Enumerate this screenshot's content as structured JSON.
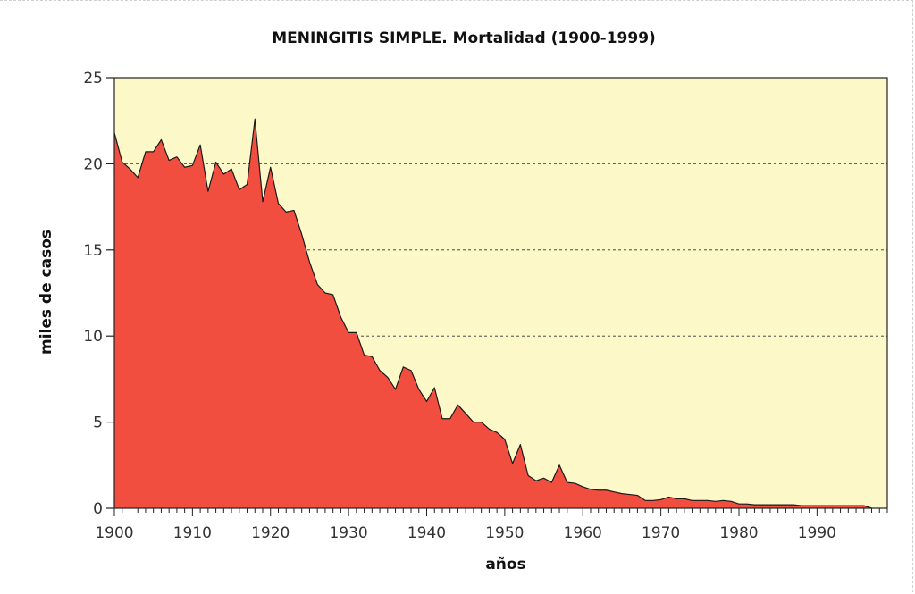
{
  "chart_data": {
    "type": "area",
    "title": "MENINGITIS SIMPLE. Mortalidad (1900-1999)",
    "xlabel": "años",
    "ylabel": "miles de casos",
    "xlim": [
      1900,
      1999
    ],
    "ylim": [
      0,
      25
    ],
    "x_ticks": [
      1900,
      1910,
      1920,
      1930,
      1940,
      1950,
      1960,
      1970,
      1980,
      1990
    ],
    "y_ticks": [
      0,
      5,
      10,
      15,
      20,
      25
    ],
    "grid": "horizontal-dashed",
    "colors": {
      "plot_background": "#fdf8c8",
      "area_fill": "#f24e40",
      "line": "#1a1a1a"
    },
    "x": [
      1900,
      1901,
      1902,
      1903,
      1904,
      1905,
      1906,
      1907,
      1908,
      1909,
      1910,
      1911,
      1912,
      1913,
      1914,
      1915,
      1916,
      1917,
      1918,
      1919,
      1920,
      1921,
      1922,
      1923,
      1924,
      1925,
      1926,
      1927,
      1928,
      1929,
      1930,
      1931,
      1932,
      1933,
      1934,
      1935,
      1936,
      1937,
      1938,
      1939,
      1940,
      1941,
      1942,
      1943,
      1944,
      1945,
      1946,
      1947,
      1948,
      1949,
      1950,
      1951,
      1952,
      1953,
      1954,
      1955,
      1956,
      1957,
      1958,
      1959,
      1960,
      1961,
      1962,
      1963,
      1964,
      1965,
      1966,
      1967,
      1968,
      1969,
      1970,
      1971,
      1972,
      1973,
      1974,
      1975,
      1976,
      1977,
      1978,
      1979,
      1980,
      1981,
      1982,
      1983,
      1984,
      1985,
      1986,
      1987,
      1988,
      1989,
      1990,
      1991,
      1992,
      1993,
      1994,
      1995,
      1996,
      1997
    ],
    "values": [
      21.8,
      20.1,
      19.7,
      19.2,
      20.7,
      20.7,
      21.4,
      20.2,
      20.4,
      19.8,
      19.9,
      21.1,
      18.4,
      20.1,
      19.4,
      19.7,
      18.5,
      18.8,
      22.6,
      17.8,
      19.8,
      17.7,
      17.2,
      17.3,
      15.9,
      14.3,
      13.0,
      12.5,
      12.4,
      11.1,
      10.2,
      10.2,
      8.9,
      8.8,
      8.0,
      7.6,
      6.9,
      8.2,
      8.0,
      6.9,
      6.2,
      7.0,
      5.2,
      5.2,
      6.0,
      5.5,
      5.0,
      5.0,
      4.6,
      4.4,
      4.0,
      2.6,
      3.7,
      1.9,
      1.6,
      1.75,
      1.5,
      2.5,
      1.5,
      1.45,
      1.25,
      1.1,
      1.05,
      1.05,
      0.95,
      0.85,
      0.8,
      0.75,
      0.45,
      0.45,
      0.5,
      0.65,
      0.55,
      0.55,
      0.45,
      0.45,
      0.45,
      0.4,
      0.45,
      0.4,
      0.25,
      0.25,
      0.2,
      0.2,
      0.2,
      0.2,
      0.2,
      0.2,
      0.15,
      0.15,
      0.15,
      0.15,
      0.15,
      0.15,
      0.15,
      0.15,
      0.15,
      0.0
    ]
  }
}
